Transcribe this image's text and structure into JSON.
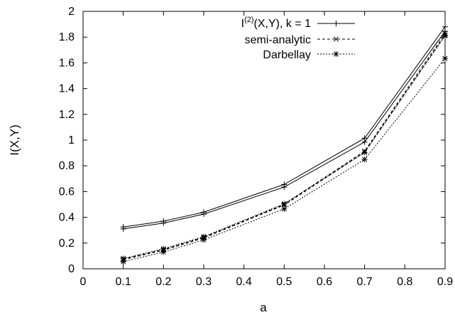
{
  "chart_data": {
    "type": "line",
    "title": "",
    "xlabel": "a",
    "ylabel": "I(X,Y)",
    "xlim": [
      0,
      0.9
    ],
    "ylim": [
      0,
      2
    ],
    "xticks": [
      0,
      0.1,
      0.2,
      0.3,
      0.4,
      0.5,
      0.6,
      0.7,
      0.8,
      0.9
    ],
    "yticks": [
      0,
      0.2,
      0.4,
      0.6,
      0.8,
      1,
      1.2,
      1.4,
      1.6,
      1.8,
      2
    ],
    "grid": false,
    "legend_position": "top-right",
    "legend": {
      "entry1": {
        "base": "I",
        "sup": "(2)",
        "rest": "(X,Y),  k = 1"
      },
      "entry2": "semi-analytic",
      "entry3": "Darbellay"
    },
    "series": [
      {
        "name": "I(2)(X,Y), k = 1",
        "marker": "plus",
        "dash": "solid",
        "x": [
          0.1,
          0.2,
          0.3,
          0.5,
          0.7,
          0.9
        ],
        "y": [
          0.325,
          0.37,
          0.44,
          0.655,
          1.015,
          1.88
        ]
      },
      {
        "marker": "plus",
        "dash": "solid",
        "x": [
          0.1,
          0.2,
          0.3,
          0.5,
          0.7,
          0.9
        ],
        "y": [
          0.31,
          0.355,
          0.425,
          0.635,
          0.985,
          1.845
        ]
      },
      {
        "name": "semi-analytic",
        "marker": "x",
        "dash": "dashed",
        "x": [
          0.1,
          0.2,
          0.3,
          0.5,
          0.7,
          0.9
        ],
        "y": [
          0.075,
          0.15,
          0.245,
          0.5,
          0.915,
          1.83
        ]
      },
      {
        "marker": "x",
        "dash": "dashed",
        "x": [
          0.1,
          0.2,
          0.3,
          0.5,
          0.7,
          0.9
        ],
        "y": [
          0.07,
          0.145,
          0.24,
          0.495,
          0.905,
          1.815
        ]
      },
      {
        "name": "Darbellay",
        "marker": "star",
        "dash": "dotted",
        "x": [
          0.1,
          0.2,
          0.3,
          0.5,
          0.7,
          0.9
        ],
        "y": [
          0.08,
          0.155,
          0.25,
          0.505,
          0.905,
          1.81
        ]
      },
      {
        "marker": "star",
        "dash": "dotted",
        "x": [
          0.1,
          0.2,
          0.3,
          0.5,
          0.7,
          0.9
        ],
        "y": [
          0.055,
          0.13,
          0.225,
          0.465,
          0.85,
          1.635
        ]
      }
    ]
  }
}
